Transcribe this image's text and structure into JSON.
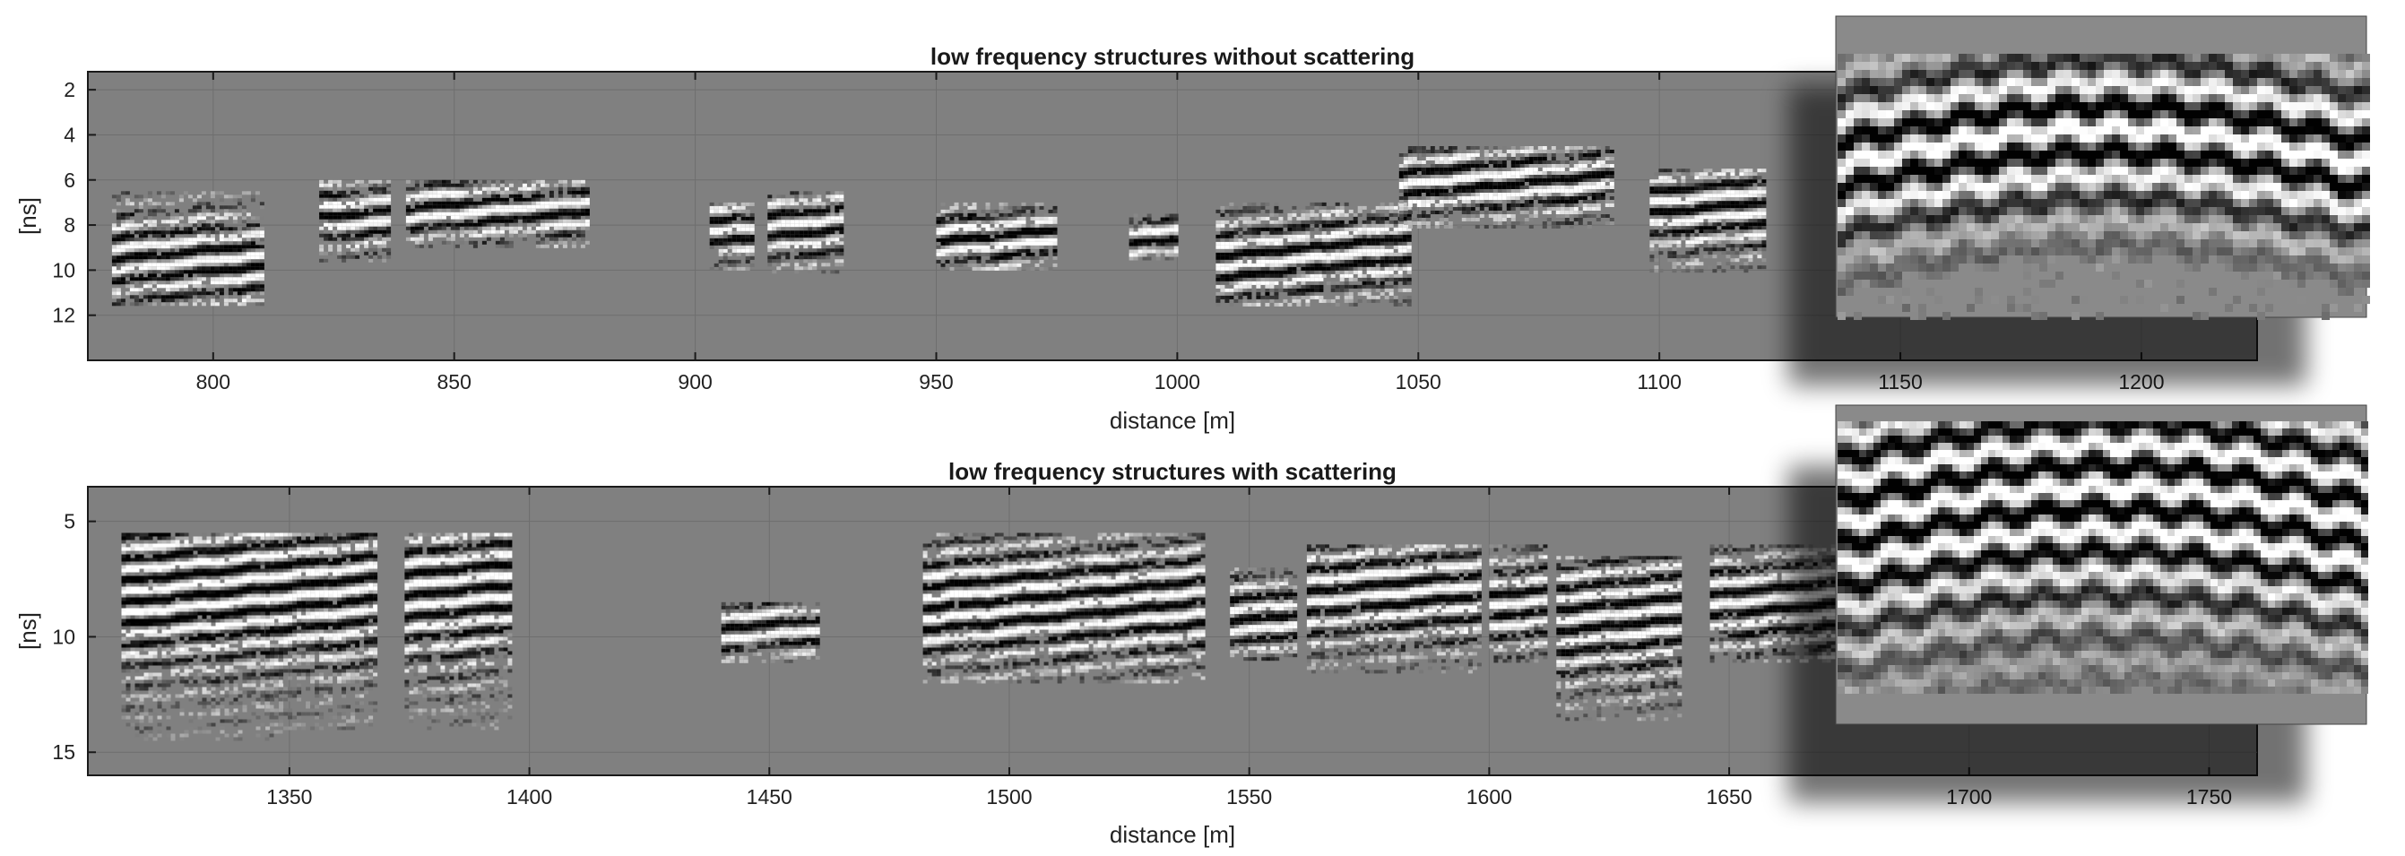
{
  "chart_data": [
    {
      "type": "heatmap",
      "title": "low frequency structures without scattering",
      "xlabel": "distance [m]",
      "ylabel": "[ns]",
      "xlim": [
        774,
        1224
      ],
      "ylim": [
        14,
        1.2
      ],
      "xticks": [
        800,
        850,
        900,
        950,
        1000,
        1050,
        1100,
        1150,
        1200
      ],
      "yticks": [
        2,
        4,
        6,
        8,
        10,
        12
      ],
      "colormap": "gray",
      "background_color": "#808080",
      "inset": "magnified detail view",
      "events": [
        {
          "x0": 779,
          "x1": 810,
          "y0": 6.5,
          "y1": 11.5,
          "center": 9.5
        },
        {
          "x0": 822,
          "x1": 836,
          "y0": 6.0,
          "y1": 9.5,
          "center": 7.5
        },
        {
          "x0": 840,
          "x1": 878,
          "y0": 6.0,
          "y1": 9.0,
          "center": 7.2
        },
        {
          "x0": 903,
          "x1": 912,
          "y0": 7.0,
          "y1": 10.0,
          "center": 8.2
        },
        {
          "x0": 915,
          "x1": 930,
          "y0": 6.5,
          "y1": 10.0,
          "center": 8.0
        },
        {
          "x0": 950,
          "x1": 975,
          "y0": 7.0,
          "y1": 10.0,
          "center": 8.5
        },
        {
          "x0": 990,
          "x1": 1000,
          "y0": 7.5,
          "y1": 9.5,
          "center": 8.5
        },
        {
          "x0": 1008,
          "x1": 1030,
          "y0": 7.0,
          "y1": 11.5,
          "center": 9.5
        },
        {
          "x0": 1030,
          "x1": 1048,
          "y0": 7.0,
          "y1": 11.5,
          "center": 9.0
        },
        {
          "x0": 1046,
          "x1": 1090,
          "y0": 4.5,
          "y1": 8.0,
          "center": 6.0
        },
        {
          "x0": 1098,
          "x1": 1122,
          "y0": 5.5,
          "y1": 10.0,
          "center": 7.2
        }
      ]
    },
    {
      "type": "heatmap",
      "title": "low frequency structures with scattering",
      "xlabel": "distance [m]",
      "ylabel": "[ns]",
      "xlim": [
        1308,
        1760
      ],
      "ylim": [
        16,
        3.5
      ],
      "xticks": [
        1350,
        1400,
        1450,
        1500,
        1550,
        1600,
        1650,
        1700,
        1750
      ],
      "yticks": [
        5,
        10,
        15
      ],
      "colormap": "gray",
      "background_color": "#808080",
      "inset": "magnified detail view",
      "events": [
        {
          "x0": 1315,
          "x1": 1348,
          "y0": 5.5,
          "y1": 14.5,
          "center": 8.0
        },
        {
          "x0": 1345,
          "x1": 1368,
          "y0": 5.5,
          "y1": 14.0,
          "center": 8.0
        },
        {
          "x0": 1374,
          "x1": 1396,
          "y0": 5.5,
          "y1": 14.0,
          "center": 8.0
        },
        {
          "x0": 1440,
          "x1": 1460,
          "y0": 8.5,
          "y1": 11.0,
          "center": 9.5
        },
        {
          "x0": 1482,
          "x1": 1540,
          "y0": 5.5,
          "y1": 12.0,
          "center": 8.5
        },
        {
          "x0": 1546,
          "x1": 1560,
          "y0": 7.0,
          "y1": 11.0,
          "center": 9.0
        },
        {
          "x0": 1562,
          "x1": 1598,
          "y0": 6.0,
          "y1": 11.5,
          "center": 8.0
        },
        {
          "x0": 1600,
          "x1": 1612,
          "y0": 6.0,
          "y1": 11.0,
          "center": 8.5
        },
        {
          "x0": 1614,
          "x1": 1640,
          "y0": 6.5,
          "y1": 13.5,
          "center": 9.0
        },
        {
          "x0": 1646,
          "x1": 1680,
          "y0": 6.0,
          "y1": 11.0,
          "center": 8.5
        }
      ]
    }
  ]
}
